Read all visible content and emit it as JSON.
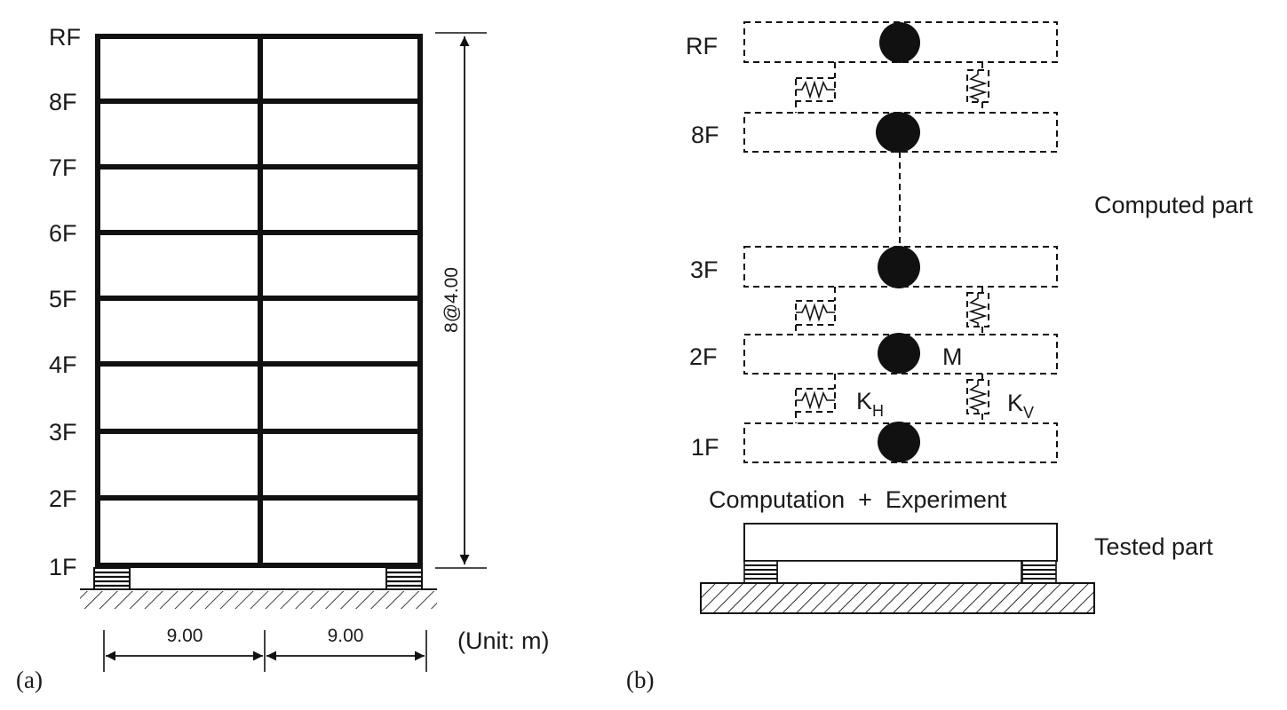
{
  "panel_a": {
    "label": "(a)",
    "floor_labels": [
      "RF",
      "8F",
      "7F",
      "6F",
      "5F",
      "4F",
      "3F",
      "2F",
      "1F"
    ],
    "height_dimension": "8@4.00",
    "span_dimensions": [
      "9.00",
      "9.00"
    ],
    "unit_note": "(Unit: m)"
  },
  "panel_b": {
    "label": "(b)",
    "floor_labels": [
      "RF",
      "8F",
      "3F",
      "2F",
      "1F"
    ],
    "mass_label": "M",
    "spring_h": {
      "main": "K",
      "sub": "H"
    },
    "spring_v": {
      "main": "K",
      "sub": "V"
    },
    "computed_label": "Computed part",
    "combo_label": "Computation  +  Experiment",
    "tested_label": "Tested part"
  }
}
